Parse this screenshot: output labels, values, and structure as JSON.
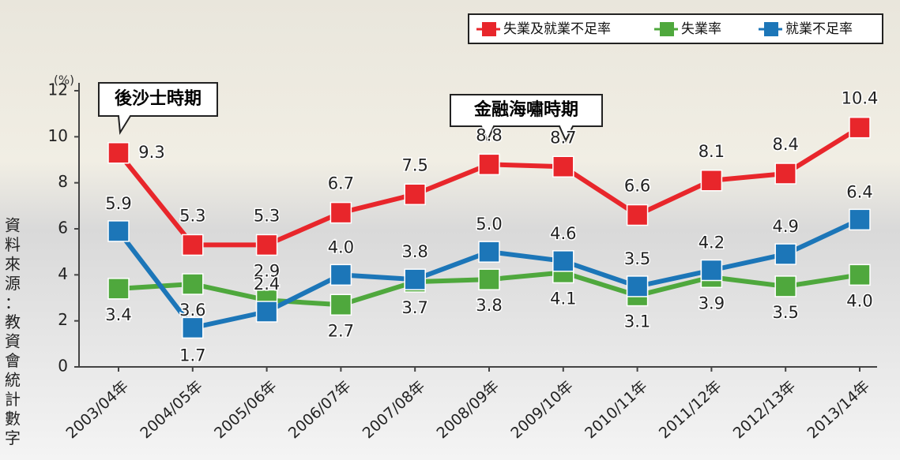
{
  "chart_data": {
    "type": "line",
    "y_unit_label": "(%)",
    "source": "資料來源：教資會統計數字",
    "annotations": [
      "後沙士時期",
      "金融海嘯時期"
    ],
    "categories": [
      "2003/04年",
      "2004/05年",
      "2005/06年",
      "2006/07年",
      "2007/08年",
      "2008/09年",
      "2009/10年",
      "2010/11年",
      "2011/12年",
      "2012/13年",
      "2013/14年"
    ],
    "series": [
      {
        "name": "失業及就業不足率",
        "color": "#e8262b",
        "values": [
          9.3,
          5.3,
          5.3,
          6.7,
          7.5,
          8.8,
          8.7,
          6.6,
          8.1,
          8.4,
          10.4
        ],
        "value_labels": [
          "9.3",
          "5.3",
          "5.3",
          "6.7",
          "7.5",
          "8.8",
          "8.7",
          "6.6",
          "8.1",
          "8.4",
          "10.4"
        ]
      },
      {
        "name": "失業率",
        "color": "#4fa83d",
        "values": [
          3.4,
          3.6,
          2.9,
          2.7,
          3.7,
          3.8,
          4.1,
          3.1,
          3.9,
          3.5,
          4.0
        ],
        "value_labels": [
          "3.4",
          "3.6",
          "2.9",
          "2.7",
          "3.7",
          "3.8",
          "4.1",
          "3.1",
          "3.9",
          "3.5",
          "4.0"
        ]
      },
      {
        "name": "就業不足率",
        "color": "#1c76b8",
        "values": [
          5.9,
          1.7,
          2.4,
          4.0,
          3.8,
          5.0,
          4.6,
          3.5,
          4.2,
          4.9,
          6.4
        ],
        "value_labels": [
          "5.9",
          "1.7",
          "2.4",
          "4.0",
          "3.8",
          "5.0",
          "4.6",
          "3.5",
          "4.2",
          "4.9",
          "6.4"
        ]
      }
    ],
    "ylim": [
      0,
      12
    ],
    "yticks": [
      0,
      2,
      4,
      6,
      8,
      10,
      12
    ],
    "legend": "top-right"
  }
}
